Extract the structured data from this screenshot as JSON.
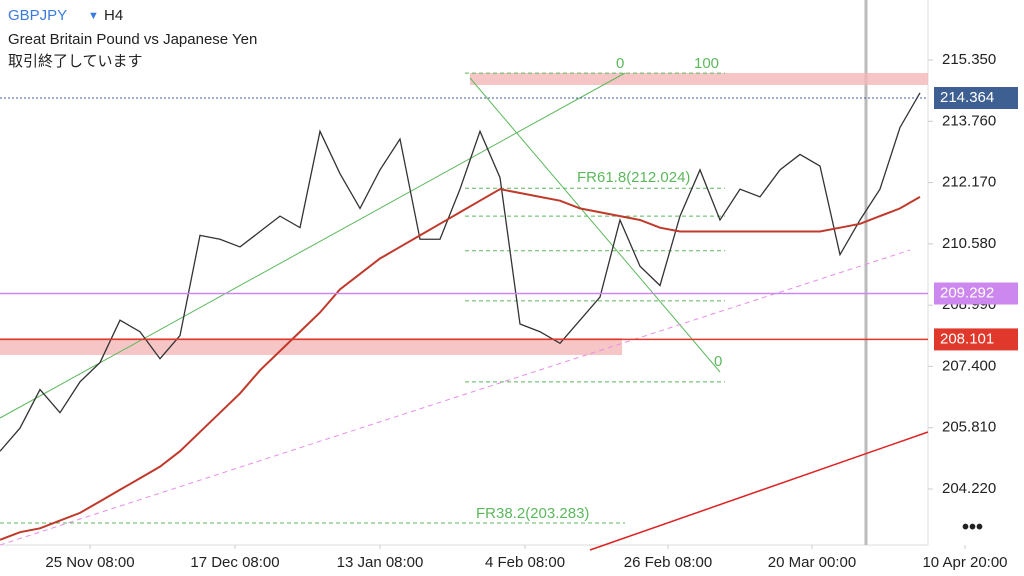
{
  "symbol": "GBPJPY",
  "timeframe": "H4",
  "subtitle": "Great Britain Pound vs Japanese Yen",
  "status": "取引終了しています",
  "chart_data": {
    "type": "line",
    "x": [
      0,
      1,
      2,
      3,
      4,
      5,
      6,
      7,
      8,
      9,
      10,
      11,
      12,
      13,
      14,
      15,
      16,
      17,
      18,
      19,
      20,
      21,
      22,
      23,
      24,
      25,
      26,
      27,
      28,
      29,
      30,
      31,
      32,
      33,
      34,
      35,
      36,
      37,
      38,
      39,
      40,
      41,
      42,
      43,
      44,
      45,
      46
    ],
    "xlim": [
      0,
      46.4
    ],
    "xticks": [
      {
        "value": 4.5,
        "label": "25 Nov 08:00"
      },
      {
        "value": 11.75,
        "label": "17 Dec 08:00"
      },
      {
        "value": 19,
        "label": "13 Jan 08:00"
      },
      {
        "value": 26.25,
        "label": "4 Feb 08:00"
      },
      {
        "value": 33.4,
        "label": "26 Feb 08:00"
      },
      {
        "value": 40.6,
        "label": "20 Mar 00:00"
      },
      {
        "value": 48.25,
        "label": "10 Apr 20:00"
      }
    ],
    "ylim": [
      202.767,
      216.907
    ],
    "yticks": [
      {
        "value": 215.35,
        "label": "215.350"
      },
      {
        "value": 213.76,
        "label": "213.760"
      },
      {
        "value": 212.17,
        "label": "212.170"
      },
      {
        "value": 210.58,
        "label": "210.580"
      },
      {
        "value": 208.99,
        "label": "208.990"
      },
      {
        "value": 207.4,
        "label": "207.400"
      },
      {
        "value": 205.81,
        "label": "205.810"
      },
      {
        "value": 204.22,
        "label": "204.220"
      }
    ],
    "series": [
      {
        "name": "GBPJPY",
        "color": "#333333",
        "values": [
          205.2,
          205.8,
          206.8,
          206.2,
          207.0,
          207.5,
          208.6,
          208.3,
          207.6,
          208.2,
          210.8,
          210.7,
          210.5,
          210.9,
          211.3,
          211.0,
          213.5,
          212.4,
          211.5,
          212.5,
          213.3,
          210.7,
          210.7,
          212.0,
          213.5,
          212.3,
          208.5,
          208.3,
          208.0,
          208.6,
          209.2,
          211.2,
          210.0,
          209.5,
          211.3,
          212.5,
          211.2,
          212.0,
          211.8,
          212.5,
          212.9,
          212.6,
          210.3,
          211.2,
          212.0,
          213.6,
          214.5
        ]
      },
      {
        "name": "MA200",
        "color": "#c0392b",
        "values": [
          202.9,
          203.1,
          203.2,
          203.4,
          203.6,
          203.9,
          204.2,
          204.5,
          204.8,
          205.2,
          205.7,
          206.2,
          206.7,
          207.3,
          207.8,
          208.3,
          208.8,
          209.4,
          209.8,
          210.2,
          210.5,
          210.8,
          211.1,
          211.4,
          211.7,
          212.0,
          211.9,
          211.8,
          211.7,
          211.5,
          211.4,
          211.3,
          211.2,
          211.0,
          210.9,
          210.9,
          210.9,
          210.9,
          210.9,
          210.9,
          210.9,
          210.9,
          211.0,
          211.1,
          211.3,
          211.5,
          211.8
        ]
      }
    ],
    "levels": [
      {
        "value": 214.364,
        "color": "#3d5f91"
      },
      {
        "value": 209.292,
        "color": "#cc88ee"
      },
      {
        "value": 208.101,
        "color": "#e0392b"
      }
    ],
    "fib_levels": [
      215.01,
      212.024,
      211.3,
      210.4,
      209.1,
      207.0
    ],
    "annotations": [
      "0",
      "100",
      "FR61.8(212.024)",
      "0",
      "FR38.2(203.283)"
    ]
  }
}
